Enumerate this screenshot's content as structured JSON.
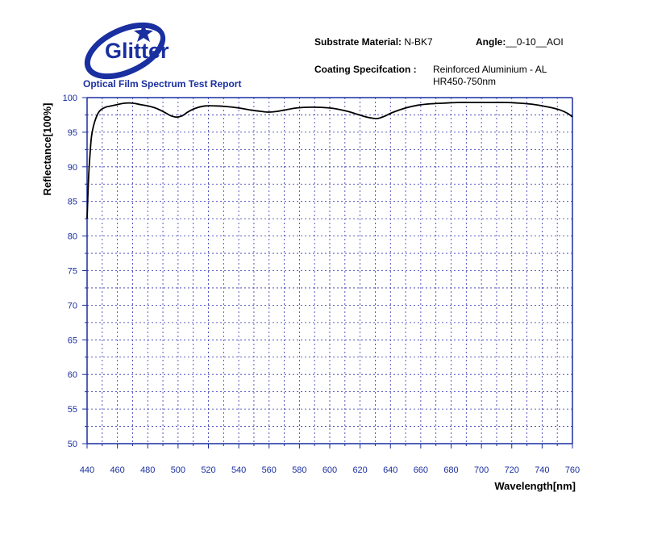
{
  "logo": {
    "text": "Glitter"
  },
  "report": {
    "subtitle": "Optical Film Spectrum Test Report"
  },
  "info": {
    "substrate_label": "Substrate Material:",
    "substrate_value": "N-BK7",
    "angle_label": "Angle:",
    "angle_value": "__0-10__AOI",
    "coating_label": "Coating Specifcation :",
    "coating_line1": "Reinforced Aluminium - AL",
    "coating_line2": "HR450-750nm"
  },
  "colors": {
    "brand_blue": "#1a2fa0",
    "curve": "#000000",
    "grid": "#3030b0"
  },
  "chart_data": {
    "type": "line",
    "xlabel": "Wavelength[nm]",
    "ylabel": "Reflectance[100%]",
    "xlim": [
      440,
      760
    ],
    "ylim": [
      50,
      100
    ],
    "grid": true,
    "x_ticks": [
      "440",
      "460",
      "480",
      "500",
      "520",
      "540",
      "560",
      "580",
      "600",
      "620",
      "640",
      "660",
      "680",
      "700",
      "720",
      "740",
      "760"
    ],
    "y_ticks": [
      "50",
      "55",
      "60",
      "65",
      "70",
      "75",
      "80",
      "85",
      "90",
      "95",
      "100"
    ],
    "series": [
      {
        "x": [
          440,
          441,
          442,
          443,
          445,
          448,
          452,
          456,
          460,
          465,
          470,
          475,
          480,
          485,
          490,
          495,
          498,
          500,
          503,
          507,
          512,
          518,
          525,
          532,
          540,
          548,
          555,
          560,
          565,
          570,
          578,
          585,
          592,
          600,
          606,
          612,
          618,
          624,
          629,
          632,
          636,
          642,
          650,
          658,
          666,
          675,
          685,
          695,
          705,
          715,
          725,
          735,
          745,
          752,
          757,
          760
        ],
        "y": [
          82.5,
          88.5,
          92,
          94.5,
          96.5,
          98.0,
          98.6,
          98.8,
          99.0,
          99.2,
          99.2,
          99.0,
          98.8,
          98.5,
          98.0,
          97.4,
          97.2,
          97.2,
          97.4,
          98.0,
          98.5,
          98.8,
          98.8,
          98.7,
          98.5,
          98.2,
          98.0,
          97.9,
          98.0,
          98.2,
          98.5,
          98.6,
          98.6,
          98.5,
          98.3,
          98.0,
          97.6,
          97.2,
          97.0,
          97.0,
          97.3,
          97.9,
          98.5,
          98.9,
          99.1,
          99.2,
          99.3,
          99.3,
          99.3,
          99.3,
          99.2,
          99.0,
          98.6,
          98.2,
          97.7,
          97.2
        ]
      }
    ]
  }
}
